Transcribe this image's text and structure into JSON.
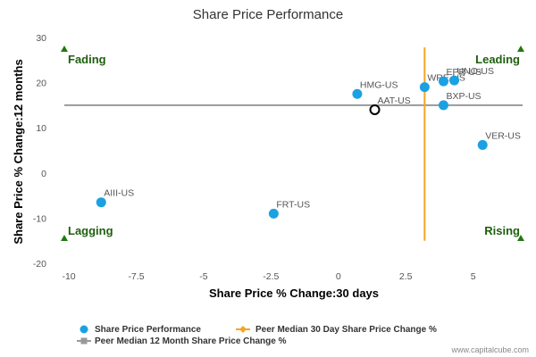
{
  "chart_data": {
    "type": "scatter",
    "title": "Share Price Performance",
    "xlabel": "Share Price % Change:30 days",
    "ylabel": "Share Price % Change:12 months",
    "xlim": [
      -10.3,
      7.0
    ],
    "ylim": [
      -20,
      30
    ],
    "xticks": [
      -10,
      -7.5,
      -5,
      -2.5,
      0,
      2.5,
      5
    ],
    "xtick_labels": [
      "-10",
      "-7.5",
      "-5",
      "-2.5",
      "0",
      "2.5",
      "5"
    ],
    "yticks": [
      30,
      20,
      10,
      0,
      -10,
      -20
    ],
    "ytick_labels": [
      "30",
      "20",
      "10",
      "0",
      "-10",
      "-20"
    ],
    "grid": false,
    "series": [
      {
        "name": "Share Price Performance",
        "color": "#1ba1e2",
        "points": [
          {
            "label": "AIII-US",
            "x": -8.8,
            "y": -6.5
          },
          {
            "label": "FRT-US",
            "x": -2.4,
            "y": -9.0
          },
          {
            "label": "HMG-US",
            "x": 0.7,
            "y": 17.5
          },
          {
            "label": "WRE-US",
            "x": 3.2,
            "y": 19.0
          },
          {
            "label": "EPR-US",
            "x": 3.9,
            "y": 20.3
          },
          {
            "label": "UNO-US",
            "x": 4.3,
            "y": 20.5
          },
          {
            "label": "BXP-US",
            "x": 3.9,
            "y": 15.0
          },
          {
            "label": "VER-US",
            "x": 5.35,
            "y": 6.2
          }
        ]
      }
    ],
    "subject": {
      "label": "AAT-US",
      "x": 1.35,
      "y": 14.0
    },
    "peer_median_30d": {
      "name": "Peer Median 30 Day Share Price Change %",
      "x": 3.2,
      "color": "#f5a623"
    },
    "peer_median_12m": {
      "name": "Peer Median 12 Month Share Price Change %",
      "y": 15.0,
      "color": "#999999"
    },
    "quadrants": {
      "top_left": "Fading",
      "top_right": "Leading",
      "bottom_left": "Lagging",
      "bottom_right": "Rising"
    },
    "legend_placement": "bottom"
  },
  "credit": "www.capitalcube.com"
}
